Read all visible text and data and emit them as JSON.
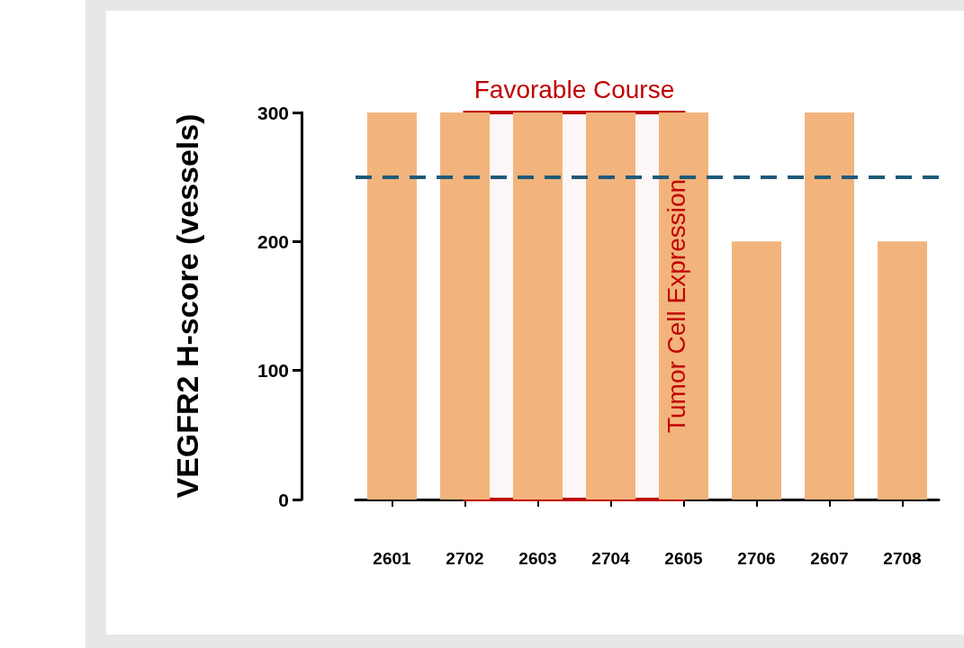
{
  "chart_data": {
    "type": "bar",
    "ylabel": "VEGFR2 H-score (vessels)",
    "categories": [
      "2601",
      "2702",
      "2603",
      "2704",
      "2605",
      "2706",
      "2607",
      "2708"
    ],
    "values": [
      300,
      300,
      300,
      300,
      300,
      200,
      300,
      200
    ],
    "color": "#f2b47c",
    "ylim": [
      0,
      300
    ],
    "yticks": [
      0,
      100,
      200,
      300
    ],
    "grid": false,
    "ref_lines": [
      {
        "axis": "y",
        "value": 250,
        "color": "#1f5a78",
        "line_style": "dashed"
      }
    ],
    "bands": [
      {
        "axis": "x",
        "from": "2702",
        "to": "2605",
        "label": "Favorable Course",
        "color": "#c00000"
      }
    ],
    "annotations": [
      {
        "text": "Tumor Cell Expression",
        "x": "2605",
        "y": 150
      }
    ]
  }
}
